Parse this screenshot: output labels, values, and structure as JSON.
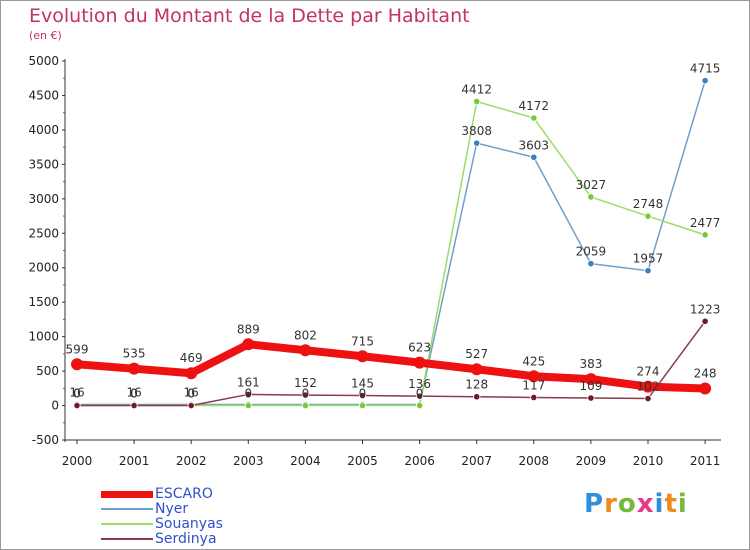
{
  "title": "Evolution du Montant de la Dette par Habitant",
  "subtitle": "(en €)",
  "brand": {
    "letters": [
      {
        "ch": "P",
        "color": "#2f8fd8"
      },
      {
        "ch": "r",
        "color": "#f08a1c"
      },
      {
        "ch": "o",
        "color": "#78b83a"
      },
      {
        "ch": "x",
        "color": "#e8388a"
      },
      {
        "ch": "i",
        "color": "#2f8fd8"
      },
      {
        "ch": "t",
        "color": "#f08a1c"
      },
      {
        "ch": "i",
        "color": "#78b83a"
      }
    ]
  },
  "chart_data": {
    "type": "line",
    "x": [
      "2000",
      "2001",
      "2002",
      "2003",
      "2004",
      "2005",
      "2006",
      "2007",
      "2008",
      "2009",
      "2010",
      "2011"
    ],
    "ylim": [
      -500,
      5000
    ],
    "yticks": [
      "-500",
      "0",
      "500",
      "1000",
      "1500",
      "2000",
      "2500",
      "3000",
      "3500",
      "4000",
      "4500",
      "5000"
    ],
    "grid": false,
    "legend_position": "bottom-left",
    "series": [
      {
        "name": "ESCARO",
        "color": "#ee1111",
        "marker_color": "#ee1111",
        "values": [
          599,
          535,
          469,
          889,
          802,
          715,
          623,
          527,
          425,
          383,
          274,
          248
        ],
        "labels": [
          "599",
          "535",
          "469",
          "889",
          "802",
          "715",
          "623",
          "527",
          "425",
          "383",
          "274",
          "248"
        ]
      },
      {
        "name": "Nyer",
        "color": "#6fa0cc",
        "marker_color": "#3d7fc0",
        "values": [
          16,
          16,
          16,
          16,
          16,
          16,
          16,
          3808,
          3603,
          2059,
          1957,
          4715
        ],
        "labels": [
          "16",
          "16",
          "16",
          "",
          "",
          "",
          "",
          "3808",
          "3603",
          "2059",
          "1957",
          "4715"
        ]
      },
      {
        "name": "Souanyas",
        "color": "#99dd66",
        "marker_color": "#77c83a",
        "values": [
          0,
          0,
          0,
          0,
          0,
          0,
          0,
          4412,
          4172,
          3027,
          2748,
          2477
        ],
        "labels": [
          "0",
          "0",
          "0",
          "0",
          "0",
          "0",
          "0",
          "4412",
          "4172",
          "3027",
          "2748",
          "2477"
        ]
      },
      {
        "name": "Serdinya",
        "color": "#8a3a48",
        "marker_color": "#6e1a28",
        "values": [
          0,
          0,
          0,
          161,
          152,
          145,
          136,
          128,
          117,
          109,
          102,
          1223
        ],
        "labels": [
          "0",
          "0",
          "0",
          "161",
          "152",
          "145",
          "136",
          "128",
          "117",
          "109",
          "102",
          "1223"
        ]
      }
    ]
  }
}
